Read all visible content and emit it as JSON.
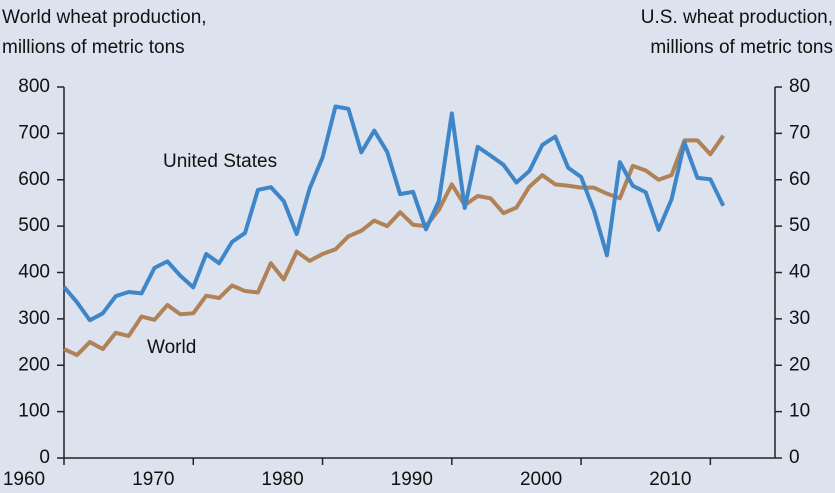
{
  "chart_data": {
    "type": "line",
    "ylabel": [
      "World wheat production,",
      "millions of metric tons"
    ],
    "y2label": [
      "U.S. wheat production,",
      "millions of metric tons"
    ],
    "annotations": [
      "United States",
      "World"
    ],
    "x": [
      1960,
      1961,
      1962,
      1963,
      1964,
      1965,
      1966,
      1967,
      1968,
      1969,
      1970,
      1971,
      1972,
      1973,
      1974,
      1975,
      1976,
      1977,
      1978,
      1979,
      1980,
      1981,
      1982,
      1983,
      1984,
      1985,
      1986,
      1987,
      1988,
      1989,
      1990,
      1991,
      1992,
      1993,
      1994,
      1995,
      1996,
      1997,
      1998,
      1999,
      2000,
      2001,
      2002,
      2003,
      2004,
      2005,
      2006,
      2007,
      2008,
      2009,
      2010,
      2011
    ],
    "series": [
      {
        "name": "World",
        "color": "#b08257",
        "values": [
          235,
          222,
          250,
          235,
          270,
          263,
          305,
          298,
          330,
          310,
          312,
          350,
          345,
          372,
          360,
          357,
          420,
          385,
          445,
          425,
          440,
          450,
          478,
          490,
          512,
          500,
          530,
          503,
          500,
          535,
          590,
          545,
          565,
          560,
          528,
          540,
          585,
          610,
          590,
          587,
          583,
          583,
          570,
          560,
          630,
          620,
          600,
          610,
          685,
          685,
          655,
          695
        ]
      },
      {
        "name": "United States",
        "color": "#3f86c8",
        "axis": "y2",
        "values": [
          36.9,
          33.6,
          29.7,
          31.2,
          34.9,
          35.8,
          35.5,
          41.0,
          42.4,
          39.3,
          36.8,
          44.0,
          42.0,
          46.6,
          48.5,
          57.8,
          58.4,
          55.4,
          48.3,
          58.1,
          64.8,
          75.8,
          75.3,
          65.9,
          70.6,
          66.0,
          56.9,
          57.4,
          49.3,
          55.4,
          74.3,
          53.9,
          67.1,
          65.2,
          63.2,
          59.4,
          61.9,
          67.5,
          69.3,
          62.6,
          60.6,
          53.3,
          43.7,
          63.8,
          58.7,
          57.3,
          49.2,
          55.8,
          68.0,
          60.4,
          60.1,
          54.4
        ]
      }
    ],
    "xlim": [
      1960,
      2015
    ],
    "xticks": [
      1960,
      1970,
      1980,
      1990,
      2000,
      2010
    ],
    "ylim": [
      0,
      800
    ],
    "yticks": [
      0,
      100,
      200,
      300,
      400,
      500,
      600,
      700,
      800
    ],
    "y2lim": [
      0,
      80
    ],
    "y2ticks": [
      0,
      10,
      20,
      30,
      40,
      50,
      60,
      70,
      80
    ]
  }
}
